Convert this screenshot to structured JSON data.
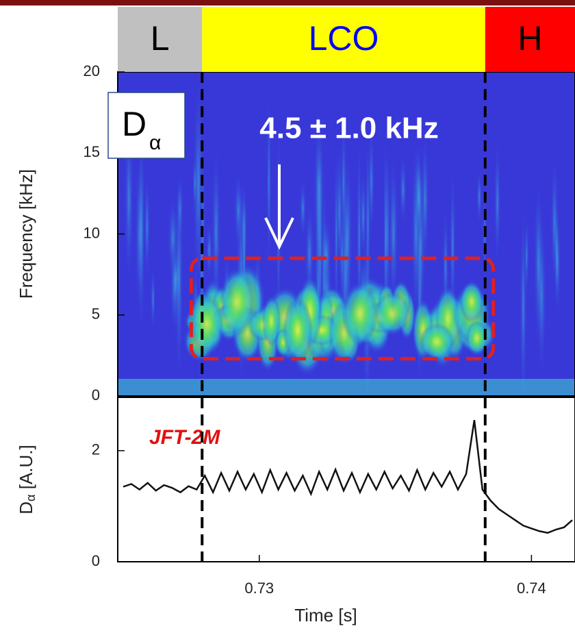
{
  "chart_data": [
    {
      "type": "spectrogram",
      "ylabel": "Frequency [kHz]",
      "ylim": [
        0,
        20
      ],
      "yticks": [
        0,
        5,
        10,
        15,
        20
      ],
      "xlim": [
        0.7248,
        0.7416
      ],
      "phases": [
        {
          "label": "L",
          "color": "#c0c0c0",
          "text_color": "#000000"
        },
        {
          "label": "LCO",
          "color": "#ffff00",
          "text_color": "#0000ff"
        },
        {
          "label": "H",
          "color": "#ff0000",
          "text_color": "#000000"
        }
      ],
      "markers": [
        0.7279,
        0.7383
      ],
      "highlight": {
        "x": [
          0.7275,
          0.7386
        ],
        "y": [
          2.3,
          8.5
        ],
        "color": "#e02020"
      },
      "signal_label": {
        "main": "D",
        "sub": "α"
      },
      "annotation": "4.5 ± 1.0 kHz"
    },
    {
      "type": "line",
      "ylabel": {
        "main": "D",
        "sub": "α",
        "rest": " [A.U.]"
      },
      "xlabel": "Time [s]",
      "xlim": [
        0.7248,
        0.7416
      ],
      "xticks": [
        0.73,
        0.74
      ],
      "ylim": [
        0,
        2.96
      ],
      "yticks": [
        0,
        2
      ],
      "markers": [
        0.7279,
        0.7383
      ],
      "device": "JFT-2M",
      "color": "#111111",
      "x": [
        0.725,
        0.7253,
        0.7256,
        0.7259,
        0.7262,
        0.7265,
        0.7268,
        0.7271,
        0.7274,
        0.7277,
        0.728,
        0.7283,
        0.7286,
        0.7289,
        0.7292,
        0.7295,
        0.7298,
        0.7301,
        0.7304,
        0.7307,
        0.731,
        0.7313,
        0.7316,
        0.7319,
        0.7322,
        0.7325,
        0.7328,
        0.7331,
        0.7334,
        0.7337,
        0.734,
        0.7343,
        0.7346,
        0.7349,
        0.7352,
        0.7355,
        0.7358,
        0.7361,
        0.7364,
        0.7367,
        0.737,
        0.7373,
        0.7376,
        0.7379,
        0.7382,
        0.7385,
        0.7388,
        0.7391,
        0.7394,
        0.7397,
        0.74,
        0.7403,
        0.7406,
        0.7409,
        0.7412,
        0.7415
      ],
      "values": [
        1.35,
        1.4,
        1.3,
        1.42,
        1.28,
        1.38,
        1.33,
        1.25,
        1.36,
        1.3,
        1.55,
        1.25,
        1.6,
        1.28,
        1.62,
        1.3,
        1.58,
        1.25,
        1.65,
        1.3,
        1.6,
        1.28,
        1.55,
        1.22,
        1.62,
        1.3,
        1.66,
        1.28,
        1.6,
        1.25,
        1.58,
        1.3,
        1.62,
        1.32,
        1.55,
        1.28,
        1.65,
        1.3,
        1.6,
        1.35,
        1.62,
        1.3,
        1.58,
        2.55,
        1.3,
        1.1,
        0.95,
        0.85,
        0.75,
        0.65,
        0.6,
        0.55,
        0.52,
        0.58,
        0.62,
        0.75
      ]
    }
  ]
}
